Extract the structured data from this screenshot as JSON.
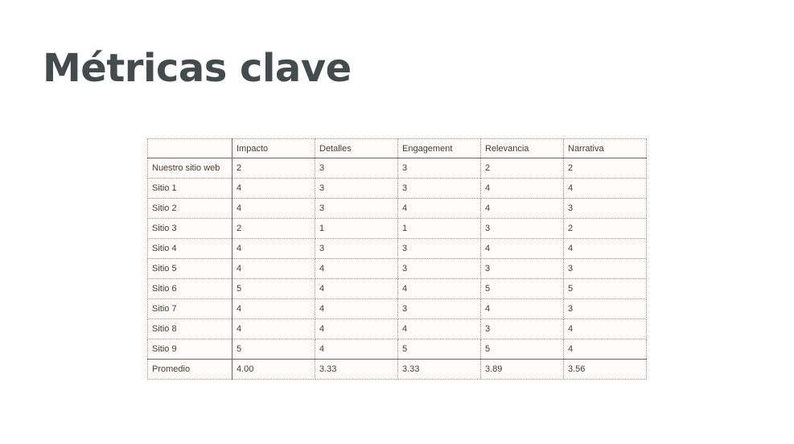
{
  "slide": {
    "title": "Métricas clave"
  },
  "table": {
    "columns": [
      "",
      "Impacto",
      "Detalles",
      "Engagement",
      "Relevancia",
      "Narrativa"
    ],
    "rows": [
      {
        "label": "Nuestro sitio web",
        "values": [
          "2",
          "3",
          "3",
          "2",
          "2"
        ]
      },
      {
        "label": "Sitio 1",
        "values": [
          "4",
          "3",
          "3",
          "4",
          "4"
        ]
      },
      {
        "label": "Sitio 2",
        "values": [
          "4",
          "3",
          "4",
          "4",
          "3"
        ]
      },
      {
        "label": "Sitio 3",
        "values": [
          "2",
          "1",
          "1",
          "3",
          "2"
        ]
      },
      {
        "label": "Sitio 4",
        "values": [
          "4",
          "3",
          "3",
          "4",
          "4"
        ]
      },
      {
        "label": "Sitio 5",
        "values": [
          "4",
          "4",
          "3",
          "3",
          "3"
        ]
      },
      {
        "label": "Sitio 6",
        "values": [
          "5",
          "4",
          "4",
          "5",
          "5"
        ]
      },
      {
        "label": "Sitio 7",
        "values": [
          "4",
          "4",
          "3",
          "4",
          "3"
        ]
      },
      {
        "label": "Sitio 8",
        "values": [
          "4",
          "4",
          "4",
          "3",
          "4"
        ]
      },
      {
        "label": "Sitio 9",
        "values": [
          "5",
          "4",
          "5",
          "5",
          "4"
        ]
      }
    ],
    "average": {
      "label": "Promedio",
      "values": [
        "4.00",
        "3.33",
        "3.33",
        "3.89",
        "3.56"
      ]
    }
  }
}
